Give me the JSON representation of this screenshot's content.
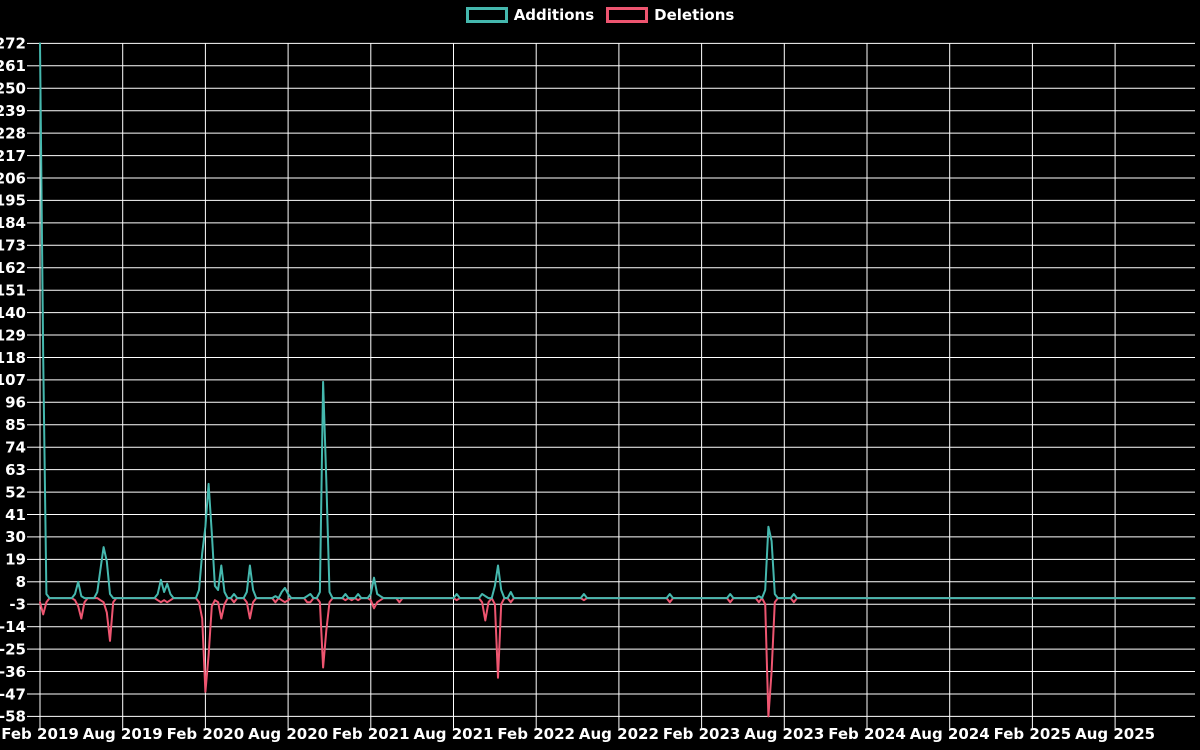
{
  "chart_data": {
    "type": "line",
    "legend_position": "top-center",
    "background": "#000000",
    "grid": true,
    "grid_color": "#ffffff",
    "text_color": "#ffffff",
    "x_axis": {
      "tick_labels": [
        "Feb 2019",
        "Aug 2019",
        "Feb 2020",
        "Aug 2020",
        "Feb 2021",
        "Aug 2021",
        "Feb 2022",
        "Aug 2022",
        "Feb 2023",
        "Aug 2023",
        "Feb 2024",
        "Aug 2024",
        "Feb 2025",
        "Aug 2025"
      ],
      "unit": "week"
    },
    "y_axis": {
      "min": -58,
      "max": 272,
      "step": 11,
      "tick_labels": [
        272,
        261,
        250,
        239,
        228,
        217,
        206,
        195,
        184,
        173,
        162,
        151,
        140,
        129,
        118,
        107,
        96,
        85,
        74,
        63,
        52,
        41,
        30,
        19,
        8,
        -3,
        -14,
        -25,
        -36,
        -47,
        -58
      ]
    },
    "weeks_total": 364,
    "series": [
      {
        "name": "Additions",
        "color": "#45b8ae",
        "baseline": 0,
        "weekly_nonzero": {
          "0": 272,
          "1": 118,
          "2": 2,
          "11": 2,
          "12": 8,
          "13": 1,
          "18": 3,
          "19": 14,
          "20": 25,
          "21": 18,
          "22": 2,
          "37": 2,
          "38": 9,
          "39": 3,
          "40": 7,
          "41": 2,
          "50": 4,
          "51": 22,
          "52": 35,
          "53": 56,
          "54": 32,
          "55": 6,
          "56": 4,
          "57": 16,
          "58": 3,
          "61": 2,
          "65": 3,
          "66": 16,
          "67": 4,
          "74": 1,
          "76": 3,
          "77": 5,
          "78": 2,
          "84": 1,
          "85": 2,
          "88": 3,
          "89": 106,
          "90": 58,
          "91": 3,
          "96": 2,
          "100": 2,
          "104": 2,
          "105": 10,
          "106": 2,
          "107": 1,
          "131": 2,
          "139": 2,
          "140": 1,
          "143": 6,
          "144": 16,
          "145": 4,
          "148": 3,
          "171": 2,
          "198": 2,
          "217": 2,
          "226": 1,
          "228": 4,
          "229": 35,
          "230": 28,
          "231": 2,
          "237": 2
        }
      },
      {
        "name": "Deletions",
        "color": "#ee5570",
        "baseline": 0,
        "weekly_nonzero": {
          "0": -2,
          "1": -8,
          "2": -2,
          "11": -1,
          "12": -4,
          "13": -10,
          "14": -2,
          "19": -1,
          "20": -2,
          "21": -7,
          "22": -21,
          "23": -2,
          "37": -1,
          "38": -2,
          "39": -1,
          "40": -2,
          "41": -1,
          "50": -2,
          "51": -10,
          "52": -46,
          "53": -28,
          "54": -4,
          "55": -1,
          "56": -2,
          "57": -10,
          "58": -3,
          "61": -2,
          "65": -2,
          "66": -10,
          "67": -2,
          "74": -2,
          "76": -1,
          "77": -2,
          "78": -1,
          "84": -2,
          "85": -2,
          "88": -2,
          "89": -34,
          "90": -16,
          "91": -2,
          "96": -1,
          "98": -1,
          "100": -1,
          "104": -1,
          "105": -5,
          "106": -2,
          "107": -1,
          "113": -2,
          "131": -1,
          "139": -2,
          "140": -11,
          "141": -2,
          "143": -3,
          "144": -39,
          "145": -3,
          "148": -2,
          "171": -1,
          "198": -2,
          "217": -2,
          "226": -2,
          "228": -3,
          "229": -58,
          "230": -36,
          "231": -2,
          "237": -2
        }
      }
    ]
  }
}
